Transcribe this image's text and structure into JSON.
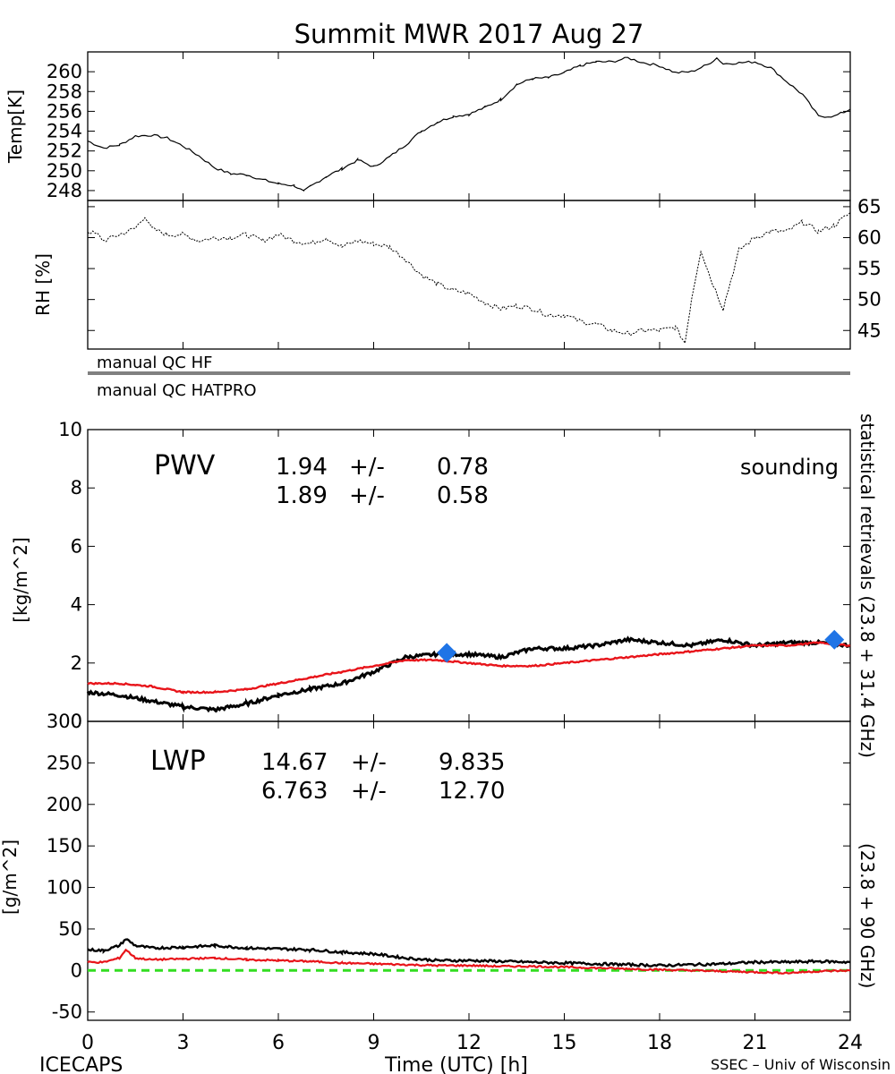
{
  "title": "Summit MWR 2017 Aug 27",
  "footer": {
    "left": "ICECAPS",
    "center": "Time (UTC) [h]",
    "right": "SSEC – Univ of Wisconsin"
  },
  "colors": {
    "black_series": "#000000",
    "red_series": "#e8141a",
    "sounding": "#1f74e6",
    "zero_line": "#33dd22"
  },
  "qc_labels": [
    "manual QC HF",
    "manual QC HATPRO"
  ],
  "side_labels": {
    "black": "statistical retrievals (23.8 + 31.4 GHz)",
    "red": "(23.8 + 90 GHz)"
  },
  "chart_data": [
    {
      "type": "line",
      "ylabel": "Temp[K]",
      "xlim": [
        0,
        24
      ],
      "ylim": [
        247,
        262
      ],
      "yticks": [
        248,
        250,
        252,
        254,
        256,
        258,
        260
      ],
      "series": [
        {
          "x": [
            0,
            0.5,
            1,
            1.5,
            2,
            2.5,
            3,
            3.5,
            4,
            4.5,
            5,
            5.5,
            6,
            6.5,
            6.8,
            7,
            7.5,
            8,
            8.5,
            9,
            9.5,
            10,
            10.5,
            11,
            11.5,
            12,
            12.5,
            13,
            13.5,
            14,
            14.5,
            15,
            15.5,
            16,
            16.5,
            17,
            17.5,
            18,
            18.5,
            19,
            19.5,
            19.8,
            20,
            20.5,
            21,
            21.5,
            22,
            22.5,
            23,
            23.5,
            24
          ],
          "values": [
            253.0,
            252.3,
            252.6,
            253.5,
            253.6,
            253.3,
            252.5,
            251.5,
            250.3,
            249.7,
            249.6,
            249.1,
            248.7,
            248.5,
            247.9,
            248.4,
            249.4,
            250.2,
            251.1,
            250.4,
            251.4,
            252.6,
            254.0,
            254.9,
            255.5,
            255.7,
            256.4,
            257.2,
            258.7,
            259.3,
            259.4,
            259.9,
            260.6,
            261.0,
            261.0,
            261.4,
            260.9,
            260.6,
            259.9,
            260.0,
            260.7,
            261.4,
            260.8,
            260.9,
            261.0,
            260.4,
            259.0,
            257.7,
            255.5,
            255.5,
            256.2
          ]
        }
      ]
    },
    {
      "type": "line",
      "ylabel": "RH [%]",
      "xlim": [
        0,
        24
      ],
      "ylim": [
        42,
        66
      ],
      "yticks": [
        45,
        50,
        55,
        60,
        65
      ],
      "series": [
        {
          "x": [
            0,
            0.3,
            0.5,
            1,
            1.5,
            1.8,
            2,
            2.5,
            3,
            3.5,
            4,
            4.5,
            5,
            5.5,
            6,
            6.5,
            7,
            7.5,
            8,
            8.5,
            9,
            9.5,
            10,
            10.5,
            11,
            11.5,
            12,
            12.5,
            13,
            13.5,
            14,
            14.5,
            15,
            15.5,
            16,
            16.5,
            17,
            17.5,
            18,
            18.5,
            18.8,
            19,
            19.3,
            19.6,
            20,
            20.5,
            21,
            21.5,
            22,
            22.5,
            23,
            23.5,
            24
          ],
          "values": [
            61,
            60.5,
            59.5,
            60.5,
            61.5,
            63.5,
            61.5,
            60.5,
            60.5,
            59.5,
            60.0,
            60.0,
            60.5,
            59.5,
            60.5,
            59.5,
            59.0,
            60.0,
            58.5,
            59.5,
            59.0,
            58.5,
            56.5,
            54.0,
            52.5,
            51.5,
            51.0,
            49.5,
            48.5,
            49.0,
            48.5,
            47.5,
            47.5,
            46.5,
            46.0,
            45.0,
            44.5,
            45.0,
            45.0,
            45.5,
            43.0,
            50.0,
            58.0,
            53.5,
            48.5,
            58.0,
            60.0,
            61.0,
            61.0,
            62.5,
            61.0,
            62.0,
            64.0
          ]
        }
      ]
    },
    {
      "type": "line",
      "ylabel": "[kg/m^2]",
      "label": "PWV",
      "xlim": [
        0,
        24
      ],
      "ylim": [
        0,
        10
      ],
      "yticks": [
        0,
        2,
        4,
        6,
        8,
        10
      ],
      "stats": [
        {
          "mean": "1.94",
          "sep": "+/-",
          "sd": "0.78"
        },
        {
          "mean": "1.89",
          "sep": "+/-",
          "sd": "0.58"
        }
      ],
      "sounding_label": "sounding",
      "series": [
        {
          "x": [
            0,
            1,
            2,
            3,
            4,
            5,
            6,
            7,
            8,
            9,
            10,
            11,
            12,
            13,
            14,
            15,
            16,
            17,
            18,
            19,
            20,
            21,
            22,
            23,
            24
          ],
          "values": [
            1.0,
            0.9,
            0.7,
            0.5,
            0.4,
            0.6,
            0.9,
            1.1,
            1.3,
            1.7,
            2.2,
            2.3,
            2.3,
            2.2,
            2.5,
            2.5,
            2.6,
            2.8,
            2.7,
            2.6,
            2.8,
            2.6,
            2.7,
            2.7,
            2.6
          ]
        },
        {
          "x": [
            0,
            1,
            2,
            3,
            4,
            5,
            6,
            7,
            8,
            9,
            10,
            11,
            12,
            13,
            14,
            15,
            16,
            17,
            18,
            19,
            20,
            21,
            22,
            23,
            24
          ],
          "values": [
            1.3,
            1.3,
            1.2,
            1.0,
            1.0,
            1.1,
            1.3,
            1.5,
            1.7,
            1.9,
            2.1,
            2.1,
            2.0,
            1.9,
            1.9,
            2.0,
            2.1,
            2.2,
            2.3,
            2.4,
            2.5,
            2.6,
            2.6,
            2.7,
            2.6
          ]
        }
      ],
      "sounding": {
        "x": [
          11.3,
          23.5
        ],
        "values": [
          2.35,
          2.8
        ]
      }
    },
    {
      "type": "line",
      "ylabel": "[g/m^2]",
      "label": "LWP",
      "xlabel": "Time (UTC) [h]",
      "xlim": [
        0,
        24
      ],
      "ylim": [
        -60,
        300
      ],
      "xticks": [
        0,
        3,
        6,
        9,
        12,
        15,
        18,
        21,
        24
      ],
      "yticks": [
        -50,
        0,
        50,
        100,
        150,
        200,
        250,
        300
      ],
      "stats": [
        {
          "mean": "14.67",
          "sep": "+/-",
          "sd": "9.835"
        },
        {
          "mean": "6.763",
          "sep": "+/-",
          "sd": "12.70"
        }
      ],
      "series": [
        {
          "x": [
            0,
            0.5,
            1,
            1.2,
            1.5,
            2,
            3,
            4,
            5,
            6,
            7,
            8,
            9,
            10,
            11,
            12,
            13,
            14,
            15,
            16,
            17,
            18,
            19,
            20,
            21,
            22,
            23,
            24
          ],
          "values": [
            25,
            24,
            30,
            38,
            30,
            27,
            28,
            30,
            27,
            26,
            25,
            22,
            20,
            15,
            12,
            12,
            11,
            10,
            9,
            8,
            7,
            6,
            7,
            8,
            10,
            10,
            11,
            10
          ]
        },
        {
          "x": [
            0,
            0.5,
            1,
            1.2,
            1.5,
            2,
            3,
            4,
            5,
            6,
            7,
            8,
            9,
            10,
            11,
            12,
            13,
            14,
            15,
            16,
            17,
            18,
            19,
            20,
            21,
            22,
            23,
            24
          ],
          "values": [
            10,
            10,
            15,
            25,
            15,
            13,
            14,
            15,
            13,
            12,
            11,
            9,
            8,
            7,
            6,
            6,
            5,
            5,
            4,
            3,
            2,
            1,
            0,
            -1,
            -2,
            -3,
            -1,
            0
          ]
        },
        {
          "x": [
            0,
            24
          ],
          "values": [
            0,
            0
          ]
        }
      ]
    }
  ]
}
